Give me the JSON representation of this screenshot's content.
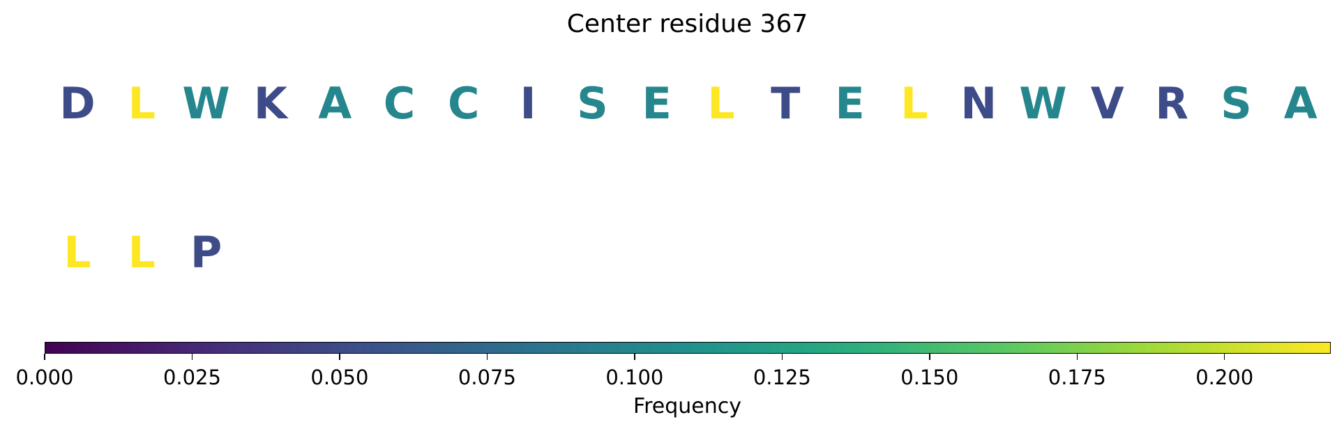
{
  "chart_data": {
    "type": "sequence-logo",
    "title": "Center residue 367",
    "rows": [
      {
        "residues": [
          "D",
          "L",
          "W",
          "K",
          "A",
          "C",
          "C",
          "I",
          "S",
          "E",
          "L",
          "T",
          "E",
          "L",
          "N",
          "W",
          "V",
          "R",
          "S",
          "A"
        ],
        "frequencies": [
          0.05,
          0.22,
          0.1,
          0.05,
          0.1,
          0.1,
          0.1,
          0.05,
          0.1,
          0.1,
          0.22,
          0.05,
          0.1,
          0.22,
          0.05,
          0.1,
          0.05,
          0.05,
          0.1,
          0.1
        ]
      },
      {
        "residues": [
          "L",
          "L",
          "P"
        ],
        "frequencies": [
          0.22,
          0.22,
          0.05
        ]
      }
    ],
    "colorbar": {
      "label": "Frequency",
      "colormap": "viridis",
      "range": [
        0.0,
        0.218
      ],
      "ticks": [
        0.0,
        0.025,
        0.05,
        0.075,
        0.1,
        0.125,
        0.15,
        0.175,
        0.2
      ],
      "tick_labels": [
        "0.000",
        "0.025",
        "0.050",
        "0.075",
        "0.100",
        "0.125",
        "0.150",
        "0.175",
        "0.200"
      ]
    }
  }
}
